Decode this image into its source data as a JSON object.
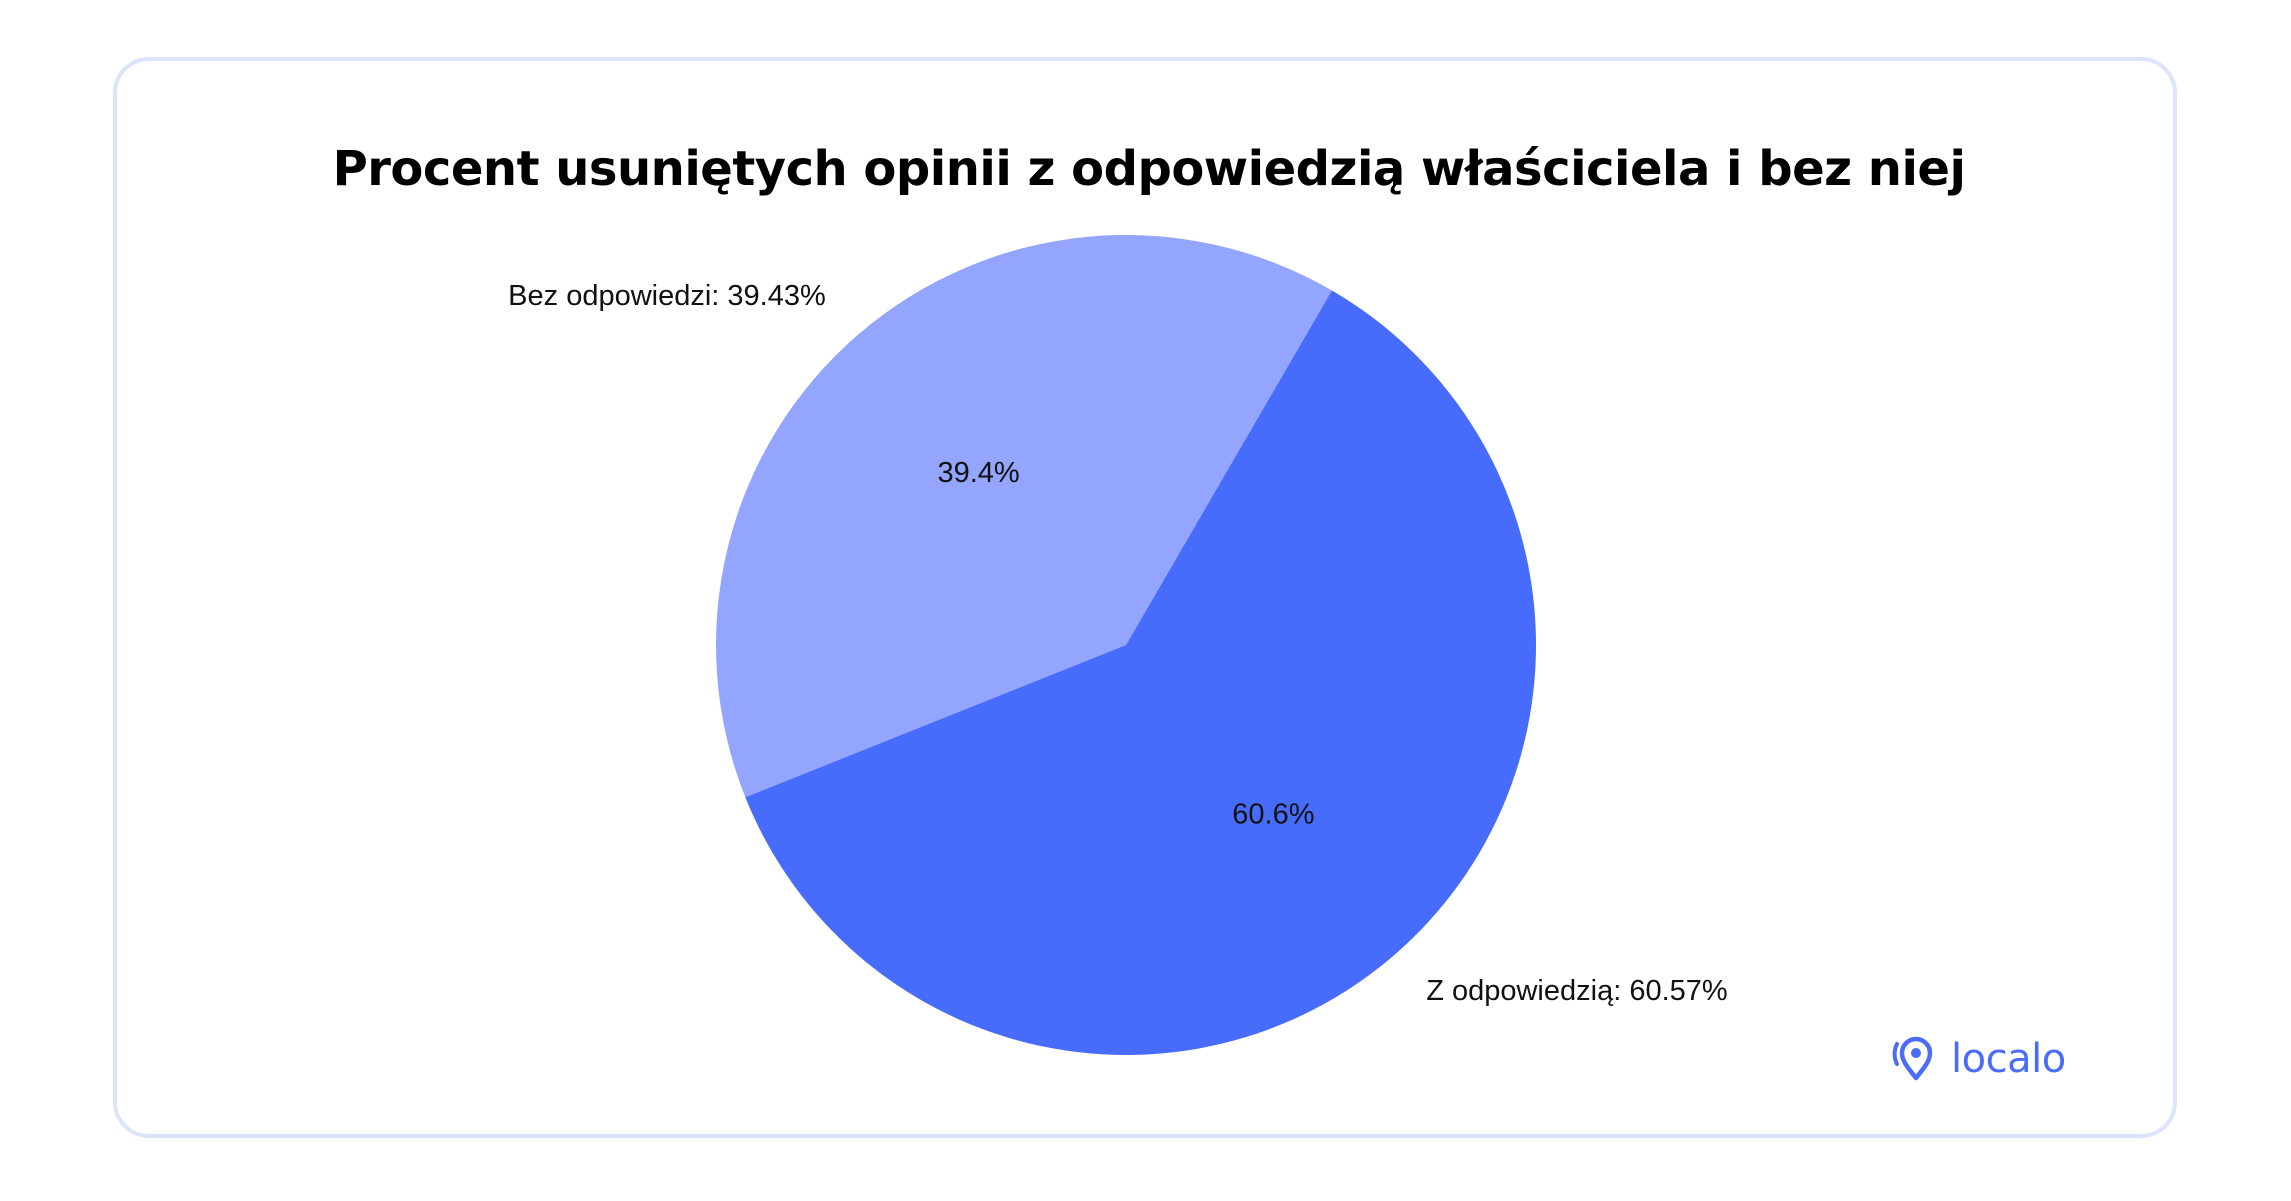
{
  "chart_data": {
    "type": "pie",
    "title": "Procent usuniętych opinii z odpowiedzią właściciela i bez niej",
    "slices": [
      {
        "label": "Bez odpowiedzi",
        "value": 39.43,
        "pct_label": "39.4%",
        "legend_text": "Bez odpowiedzi: 39.43%",
        "color": "#93a5fe"
      },
      {
        "label": "Z odpowiedzią",
        "value": 60.57,
        "pct_label": "60.6%",
        "legend_text": "Z odpowiedzią: 60.57%",
        "color": "#476cfb"
      }
    ]
  },
  "brand": {
    "name": "localo",
    "icon": "location-pin-icon",
    "color": "#4a6cf7"
  },
  "card": {
    "border_color": "#dbe4fb"
  }
}
